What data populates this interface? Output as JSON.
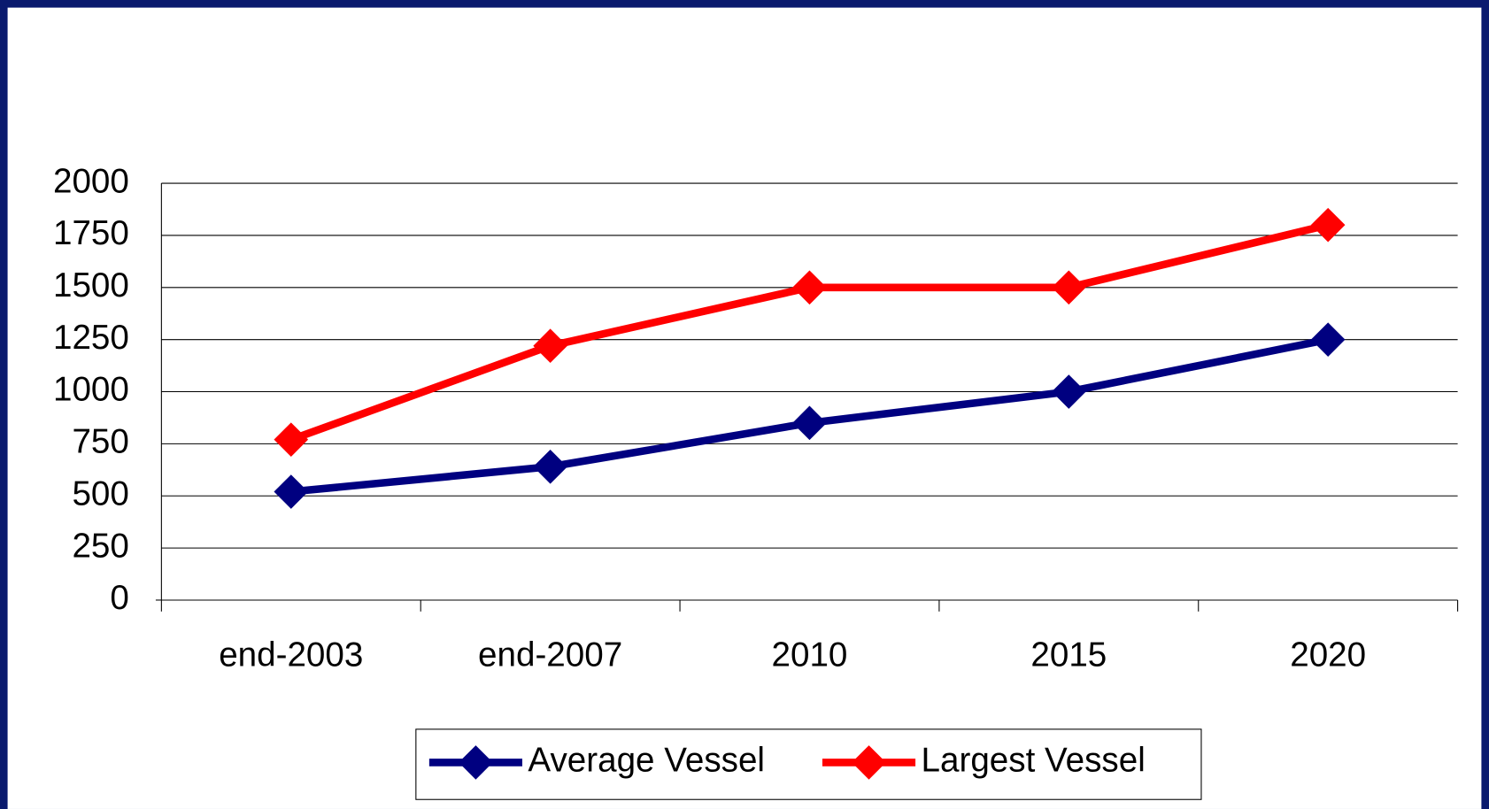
{
  "chart_data": {
    "type": "line",
    "categories": [
      "end-2003",
      "end-2007",
      "2010",
      "2015",
      "2020"
    ],
    "series": [
      {
        "name": "Average Vessel",
        "color": "#000080",
        "values": [
          520,
          640,
          850,
          1000,
          1250
        ]
      },
      {
        "name": "Largest Vessel",
        "color": "#ff0000",
        "values": [
          770,
          1220,
          1500,
          1500,
          1800
        ]
      }
    ],
    "ylim": [
      0,
      2000
    ],
    "yticks": [
      0,
      250,
      500,
      750,
      1000,
      1250,
      1500,
      1750,
      2000
    ],
    "grid": true,
    "legend": "bottom"
  }
}
